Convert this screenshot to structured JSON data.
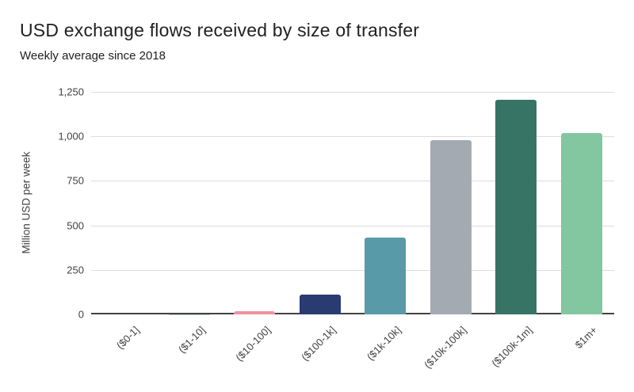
{
  "chart_data": {
    "type": "bar",
    "title": "USD exchange flows received by size of transfer",
    "subtitle": "Weekly average since 2018",
    "xlabel": "",
    "ylabel": "Million USD per week",
    "categories": [
      "($0-1]",
      "($1-10]",
      "($10-100]",
      "($100-1k]",
      "($1k-10k]",
      "($10k-100k]",
      "($100k-1m]",
      "$1m+"
    ],
    "values": [
      0,
      2,
      18,
      110,
      430,
      980,
      1205,
      1020
    ],
    "bar_colors": [
      "#c0c7ce",
      "#c0c7ce",
      "#f0929d",
      "#2a3b72",
      "#589aa8",
      "#a3aab2",
      "#377465",
      "#83c7a1"
    ],
    "ylim": [
      0,
      1250
    ],
    "ytick_values": [
      0,
      250,
      500,
      750,
      1000,
      1250
    ],
    "ytick_labels": [
      "0",
      "250",
      "500",
      "750",
      "1,000",
      "1,250"
    ],
    "grid": true,
    "legend_position": "none"
  },
  "colors": {
    "background": "#ffffff",
    "title_text": "#212121",
    "axis_text": "#424242",
    "gridline": "#dcdcdc",
    "axis_line": "#424242"
  }
}
